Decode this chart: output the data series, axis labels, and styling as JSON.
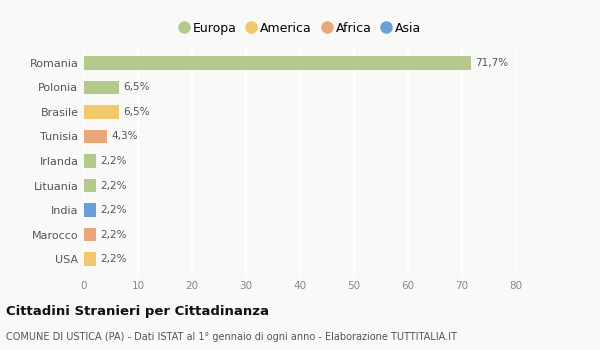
{
  "categories": [
    "Romania",
    "Polonia",
    "Brasile",
    "Tunisia",
    "Irlanda",
    "Lituania",
    "India",
    "Marocco",
    "USA"
  ],
  "values": [
    71.7,
    6.5,
    6.5,
    4.3,
    2.2,
    2.2,
    2.2,
    2.2,
    2.2
  ],
  "labels": [
    "71,7%",
    "6,5%",
    "6,5%",
    "4,3%",
    "2,2%",
    "2,2%",
    "2,2%",
    "2,2%",
    "2,2%"
  ],
  "colors": [
    "#b5c98e",
    "#b5c98e",
    "#f0c96a",
    "#e8a87c",
    "#b5c98e",
    "#b5c98e",
    "#6a9fd8",
    "#e8a87c",
    "#f0c96a"
  ],
  "legend_labels": [
    "Europa",
    "America",
    "Africa",
    "Asia"
  ],
  "legend_colors": [
    "#b5c98e",
    "#f0c96a",
    "#e8a87c",
    "#6a9fd8"
  ],
  "title": "Cittadini Stranieri per Cittadinanza",
  "subtitle": "COMUNE DI USTICA (PA) - Dati ISTAT al 1° gennaio di ogni anno - Elaborazione TUTTITALIA.IT",
  "xlim": [
    0,
    80
  ],
  "xticks": [
    0,
    10,
    20,
    30,
    40,
    50,
    60,
    70,
    80
  ],
  "background_color": "#f9f9f7",
  "bar_height": 0.55,
  "grid_color": "#ffffff",
  "axes_bg_color": "#f9f9f7"
}
